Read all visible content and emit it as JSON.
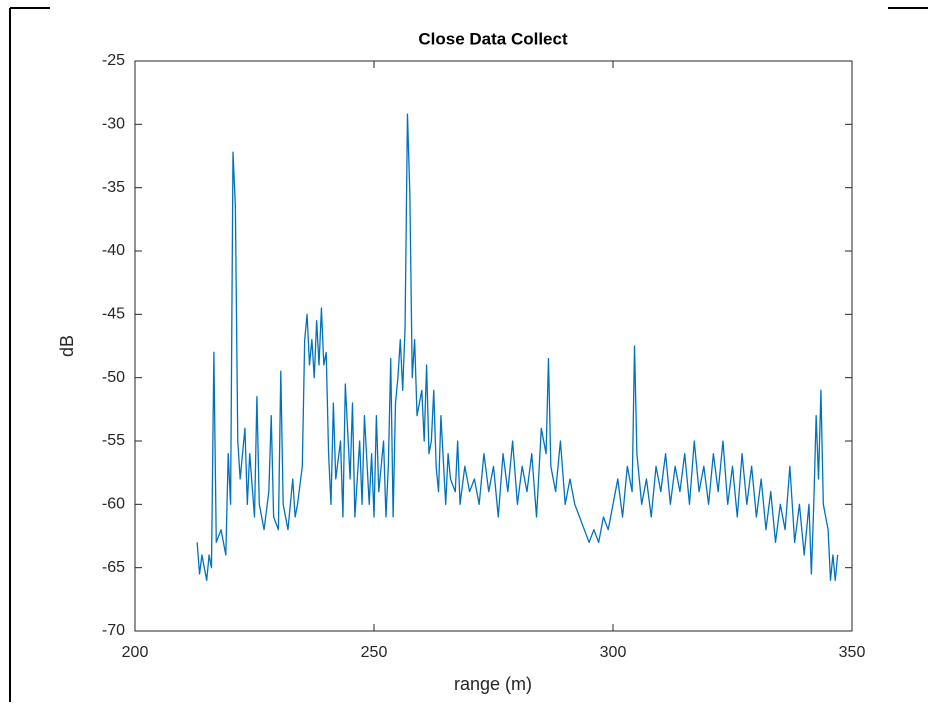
{
  "chart_data": {
    "type": "line",
    "title": "Close Data Collect",
    "xlabel": "range (m)",
    "ylabel": "dB",
    "color": "#0072bd",
    "xlim": [
      200,
      350
    ],
    "xticks": [
      200,
      250,
      300,
      350
    ],
    "ylim": [
      -70,
      -25
    ],
    "yticks": [
      -70,
      -65,
      -60,
      -55,
      -50,
      -45,
      -40,
      -35,
      -30,
      -25
    ],
    "x": [
      213,
      213.5,
      214,
      215,
      215.5,
      216,
      216.5,
      217,
      218,
      219,
      219.5,
      220,
      220.5,
      221,
      221.5,
      222,
      223,
      223.5,
      224,
      225,
      225.5,
      226,
      227,
      228,
      228.5,
      229,
      230,
      230.5,
      231,
      232,
      233,
      233.5,
      234,
      235,
      235.5,
      236,
      236.5,
      237,
      237.5,
      238,
      238.5,
      239,
      239.5,
      240,
      240.5,
      241,
      241.5,
      242,
      243,
      243.5,
      244,
      245,
      245.5,
      246,
      247,
      247.5,
      248,
      249,
      249.5,
      250,
      250.5,
      251,
      252,
      252.5,
      253,
      253.5,
      254,
      254.5,
      255,
      255.5,
      256,
      256.5,
      257,
      257.5,
      258,
      258.5,
      259,
      260,
      260.5,
      261,
      261.5,
      262,
      262.5,
      263,
      263.5,
      264,
      265,
      265.5,
      266,
      267,
      267.5,
      268,
      269,
      270,
      271,
      272,
      273,
      274,
      275,
      276,
      277,
      278,
      279,
      280,
      281,
      282,
      283,
      284,
      285,
      286,
      286.5,
      287,
      288,
      289,
      290,
      291,
      292,
      293,
      294,
      295,
      296,
      297,
      298,
      299,
      300,
      301,
      302,
      303,
      304,
      304.5,
      305,
      306,
      307,
      308,
      309,
      310,
      311,
      312,
      313,
      314,
      315,
      316,
      317,
      318,
      319,
      320,
      321,
      322,
      323,
      324,
      325,
      326,
      327,
      328,
      329,
      330,
      331,
      332,
      333,
      334,
      335,
      336,
      337,
      338,
      339,
      340,
      341,
      341.5,
      342,
      342.5,
      343,
      343.5,
      344,
      345,
      345.5,
      346,
      346.5,
      347
    ],
    "values": [
      -63,
      -65.5,
      -64,
      -66,
      -64,
      -65,
      -48,
      -63,
      -62,
      -64,
      -56,
      -60,
      -32.2,
      -36.5,
      -55,
      -58,
      -54,
      -60,
      -56,
      -61,
      -51.5,
      -60,
      -62,
      -59,
      -53,
      -61,
      -62,
      -49.5,
      -60,
      -62,
      -58,
      -61,
      -60,
      -57,
      -47,
      -45,
      -49,
      -47,
      -50,
      -45.5,
      -49,
      -44.5,
      -49,
      -48,
      -56,
      -60,
      -52,
      -58,
      -55,
      -61,
      -50.5,
      -58,
      -52,
      -61,
      -55,
      -60,
      -53,
      -60,
      -56,
      -61,
      -53,
      -59,
      -55,
      -61,
      -57,
      -48.5,
      -61,
      -52,
      -50,
      -47,
      -51,
      -46,
      -29.2,
      -35.5,
      -50,
      -47,
      -53,
      -51,
      -55,
      -49,
      -56,
      -55,
      -51,
      -57,
      -59,
      -53,
      -60,
      -56,
      -58,
      -59,
      -55,
      -60,
      -57,
      -59,
      -58,
      -60,
      -56,
      -59,
      -57,
      -61,
      -56,
      -59,
      -55,
      -60,
      -57,
      -59,
      -56,
      -61,
      -54,
      -56,
      -48.5,
      -57,
      -59,
      -55,
      -60,
      -58,
      -60,
      -61,
      -62,
      -63,
      -62,
      -63,
      -61,
      -62,
      -60,
      -58,
      -61,
      -57,
      -59,
      -47.5,
      -56,
      -60,
      -58,
      -61,
      -57,
      -59,
      -56,
      -60,
      -57,
      -59,
      -56,
      -60,
      -55,
      -59,
      -57,
      -60,
      -56,
      -59,
      -55,
      -60,
      -57,
      -61,
      -56,
      -60,
      -57,
      -61,
      -58,
      -62,
      -59,
      -63,
      -60,
      -62,
      -57,
      -63,
      -60,
      -64,
      -60,
      -65.5,
      -60,
      -53,
      -58,
      -51,
      -60,
      -62,
      -66,
      -64,
      -66,
      -64
    ]
  }
}
